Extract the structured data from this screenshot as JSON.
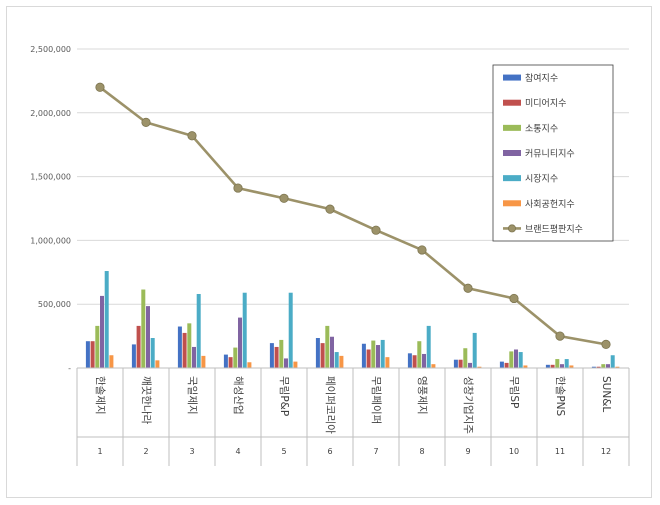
{
  "chart_data": {
    "type": "bar",
    "ylim": [
      0,
      2500000
    ],
    "yticks": [
      "-",
      "500,000",
      "1,000,000",
      "1,500,000",
      "2,000,000",
      "2,500,000"
    ],
    "ytick_values": [
      0,
      500000,
      1000000,
      1500000,
      2000000,
      2500000
    ],
    "categories": [
      "한솔제지",
      "깨끗한나라",
      "국일제지",
      "해성산업",
      "무림P&P",
      "페이퍼코리아",
      "무림페이퍼",
      "영풍제지",
      "성창기업지주",
      "무림SP",
      "한솔PNS",
      "SUN&L"
    ],
    "category_numbers": [
      "1",
      "2",
      "3",
      "4",
      "5",
      "6",
      "7",
      "8",
      "9",
      "10",
      "11",
      "12"
    ],
    "series": [
      {
        "name": "참여지수",
        "color": "#4472c4",
        "values": [
          210000,
          185000,
          325000,
          105000,
          195000,
          235000,
          190000,
          115000,
          65000,
          50000,
          25000,
          10000
        ]
      },
      {
        "name": "미디어지수",
        "color": "#c0504d",
        "values": [
          210000,
          330000,
          275000,
          85000,
          165000,
          195000,
          145000,
          100000,
          65000,
          40000,
          25000,
          10000
        ]
      },
      {
        "name": "소통지수",
        "color": "#9bbb59",
        "values": [
          330000,
          615000,
          350000,
          160000,
          220000,
          330000,
          215000,
          210000,
          155000,
          130000,
          70000,
          30000
        ]
      },
      {
        "name": "커뮤니티지수",
        "color": "#8064a2",
        "values": [
          565000,
          485000,
          165000,
          395000,
          75000,
          245000,
          180000,
          110000,
          40000,
          145000,
          30000,
          30000
        ]
      },
      {
        "name": "시장지수",
        "color": "#4bacc6",
        "values": [
          760000,
          235000,
          580000,
          590000,
          590000,
          125000,
          220000,
          330000,
          275000,
          125000,
          70000,
          100000
        ]
      },
      {
        "name": "사회공헌지수",
        "color": "#f79646",
        "values": [
          100000,
          60000,
          95000,
          45000,
          50000,
          95000,
          85000,
          30000,
          10000,
          20000,
          20000,
          10000
        ]
      }
    ],
    "line_series": {
      "name": "브랜드평판지수",
      "color": "#9c9269",
      "values": [
        2200000,
        1925000,
        1820000,
        1410000,
        1330000,
        1245000,
        1080000,
        925000,
        625000,
        545000,
        250000,
        185000
      ]
    }
  }
}
